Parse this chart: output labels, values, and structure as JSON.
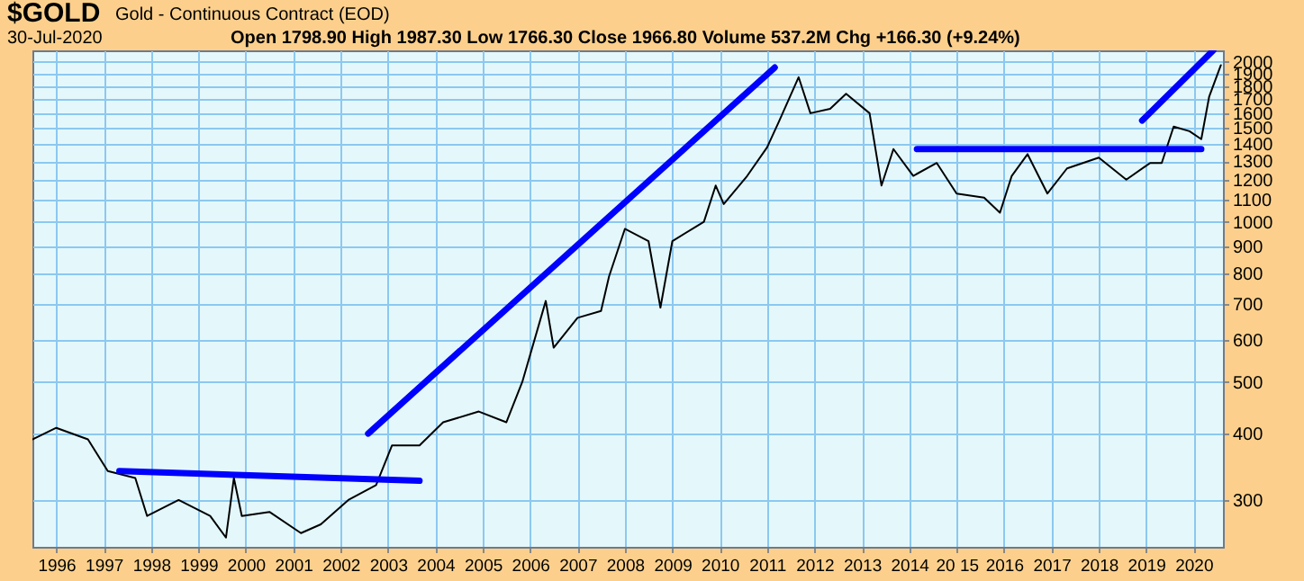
{
  "chart_data": {
    "type": "line",
    "title": "$GOLD",
    "subtitle": "Gold - Continuous Contract (EOD)",
    "annotations": [
      "30-Jul-2020",
      "Open 1798.90  High 1987.30  Low 1766.30  Close 1966.80  Volume 537.2M  Chg +166.30 (+9.24%)"
    ],
    "log": "y",
    "grid": true,
    "xlim": [
      "1995-07",
      "2020-08-15"
    ],
    "xticks": [
      {
        "value": "1996",
        "label": "1996"
      },
      {
        "value": "1997",
        "label": "1997"
      },
      {
        "value": "1998",
        "label": "1998"
      },
      {
        "value": "1999",
        "label": "1999"
      },
      {
        "value": "2000",
        "label": "2000"
      },
      {
        "value": "2001",
        "label": "2001"
      },
      {
        "value": "2002",
        "label": "2002"
      },
      {
        "value": "2003",
        "label": "2003"
      },
      {
        "value": "2004",
        "label": "2004"
      },
      {
        "value": "2005",
        "label": "2005"
      },
      {
        "value": "2006",
        "label": "2006"
      },
      {
        "value": "2007",
        "label": "2007"
      },
      {
        "value": "2008",
        "label": "2008"
      },
      {
        "value": "2009",
        "label": "2009"
      },
      {
        "value": "2010",
        "label": "2010"
      },
      {
        "value": "2011",
        "label": "2011"
      },
      {
        "value": "2012",
        "label": "2012"
      },
      {
        "value": "2013",
        "label": "2013"
      },
      {
        "value": "2014",
        "label": "2014"
      },
      {
        "value": "2015",
        "label": "20 15"
      },
      {
        "value": "2016",
        "label": "2016"
      },
      {
        "value": "2017",
        "label": "2017"
      },
      {
        "value": "2018",
        "label": "2018"
      },
      {
        "value": "2019",
        "label": "2019"
      },
      {
        "value": "2020",
        "label": "2020"
      }
    ],
    "ylim": [
      245,
      2100
    ],
    "yticks": [
      300,
      400,
      500,
      600,
      700,
      800,
      900,
      1000,
      1100,
      1200,
      1300,
      1400,
      1500,
      1600,
      1700,
      1800,
      1900,
      2000
    ],
    "series": [
      {
        "color": "#000000",
        "x": [
          "1995-07",
          "1996-01",
          "1996-09",
          "1997-02",
          "1997-09",
          "1997-12",
          "1998-08",
          "1999-04",
          "1999-08",
          "1999-10",
          "1999-12",
          "2000-07",
          "2001-03",
          "2001-08",
          "2002-03",
          "2002-10",
          "2003-02",
          "2003-09",
          "2004-03",
          "2004-12",
          "2005-07",
          "2005-11",
          "2006-05",
          "2006-07",
          "2007-01",
          "2007-07",
          "2007-09",
          "2008-01",
          "2008-07",
          "2008-10",
          "2009-01",
          "2009-09",
          "2009-12",
          "2010-02",
          "2010-08",
          "2011-01",
          "2011-04",
          "2011-09",
          "2011-12",
          "2012-05",
          "2012-09",
          "2013-03",
          "2013-06",
          "2013-09",
          "2014-02",
          "2014-08",
          "2015-01",
          "2015-08",
          "2015-12",
          "2016-03",
          "2016-07",
          "2016-12",
          "2017-05",
          "2018-01",
          "2018-08",
          "2019-02",
          "2019-05",
          "2019-08",
          "2019-12",
          "2020-03",
          "2020-05",
          "2020-07-30"
        ],
        "values": [
          390,
          410,
          390,
          340,
          330,
          280,
          300,
          280,
          255,
          330,
          280,
          285,
          260,
          270,
          300,
          320,
          380,
          380,
          420,
          440,
          420,
          500,
          710,
          580,
          660,
          680,
          790,
          970,
          920,
          690,
          920,
          1000,
          1170,
          1080,
          1220,
          1380,
          1540,
          1870,
          1600,
          1630,
          1740,
          1600,
          1170,
          1370,
          1220,
          1290,
          1130,
          1110,
          1040,
          1220,
          1340,
          1130,
          1260,
          1320,
          1200,
          1290,
          1290,
          1510,
          1480,
          1430,
          1720,
          1970
        ]
      },
      {
        "type": "line",
        "color": "#0000ff",
        "x": [
          "1997-05",
          "2003-09"
        ],
        "values": [
          340,
          326
        ]
      },
      {
        "type": "line",
        "color": "#0000ff",
        "x": [
          "2002-08",
          "2011-03"
        ],
        "values": [
          400,
          1950
        ]
      },
      {
        "type": "line",
        "color": "#0000ff",
        "x": [
          "2014-03",
          "2020-03"
        ],
        "values": [
          1370,
          1370
        ]
      },
      {
        "type": "line",
        "color": "#0000ff",
        "x": [
          "2018-12",
          "2020-06"
        ],
        "values": [
          1550,
          2100
        ]
      }
    ]
  }
}
